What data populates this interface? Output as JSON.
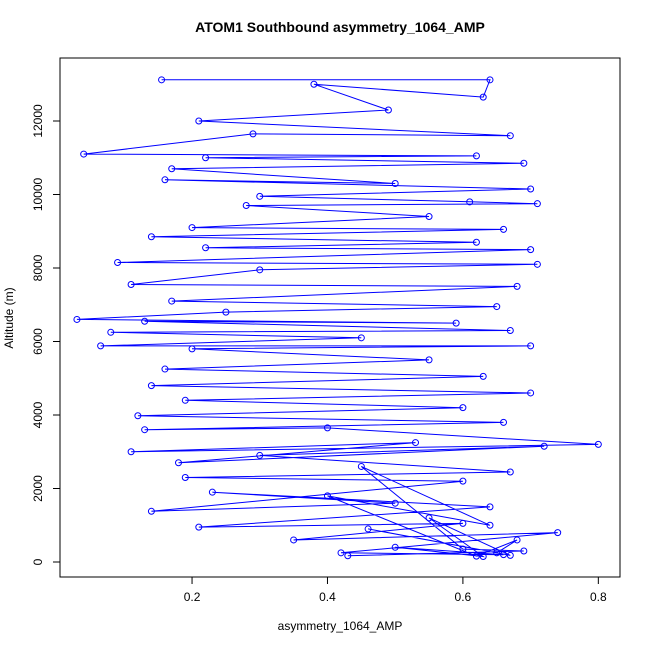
{
  "chart_data": {
    "type": "line",
    "title": "ATOM1 Southbound asymmetry_1064_AMP",
    "x_label": "asymmetry_1064_AMP",
    "y_label": "Altitude (m)",
    "xlim": [
      0.005,
      0.832
    ],
    "ylim": [
      -408,
      13714
    ],
    "xticks": [
      0.2,
      0.4,
      0.6,
      0.8
    ],
    "yticks": [
      0,
      2000,
      4000,
      6000,
      8000,
      10000,
      12000
    ],
    "x": [
      0.155,
      0.64,
      0.63,
      0.38,
      0.49,
      0.21,
      0.67,
      0.29,
      0.04,
      0.62,
      0.22,
      0.69,
      0.17,
      0.5,
      0.16,
      0.7,
      0.3,
      0.61,
      0.71,
      0.28,
      0.55,
      0.2,
      0.66,
      0.14,
      0.62,
      0.22,
      0.7,
      0.09,
      0.71,
      0.3,
      0.11,
      0.68,
      0.17,
      0.65,
      0.25,
      0.03,
      0.59,
      0.13,
      0.67,
      0.08,
      0.45,
      0.065,
      0.7,
      0.2,
      0.55,
      0.16,
      0.63,
      0.14,
      0.7,
      0.19,
      0.6,
      0.12,
      0.66,
      0.13,
      0.4,
      0.8,
      0.11,
      0.53,
      0.18,
      0.72,
      0.3,
      0.67,
      0.19,
      0.6,
      0.14,
      0.5,
      0.23,
      0.64,
      0.21,
      0.6,
      0.35,
      0.74,
      0.42,
      0.66,
      0.5,
      0.63,
      0.55,
      0.67,
      0.46,
      0.65,
      0.68,
      0.62,
      0.4,
      0.64,
      0.45,
      0.6,
      0.69,
      0.43
    ],
    "series": [
      {
        "color": "#0000ff",
        "values": [
          13120,
          13120,
          12650,
          13000,
          12300,
          12000,
          11600,
          11650,
          11100,
          11050,
          11000,
          10850,
          10700,
          10300,
          10400,
          10150,
          9950,
          9800,
          9750,
          9700,
          9400,
          9100,
          9050,
          8850,
          8700,
          8550,
          8500,
          8150,
          8100,
          7950,
          7550,
          7500,
          7100,
          6950,
          6800,
          6600,
          6500,
          6550,
          6300,
          6250,
          6100,
          5880,
          5880,
          5800,
          5500,
          5250,
          5050,
          4800,
          4600,
          4400,
          4200,
          3980,
          3800,
          3600,
          3650,
          3200,
          3000,
          3250,
          2700,
          3150,
          2900,
          2450,
          2300,
          2200,
          1380,
          1600,
          1900,
          1500,
          950,
          1050,
          600,
          800,
          250,
          200,
          400,
          150,
          1200,
          180,
          900,
          250,
          600,
          160,
          1800,
          1000,
          2600,
          350,
          300,
          170
        ]
      }
    ]
  }
}
